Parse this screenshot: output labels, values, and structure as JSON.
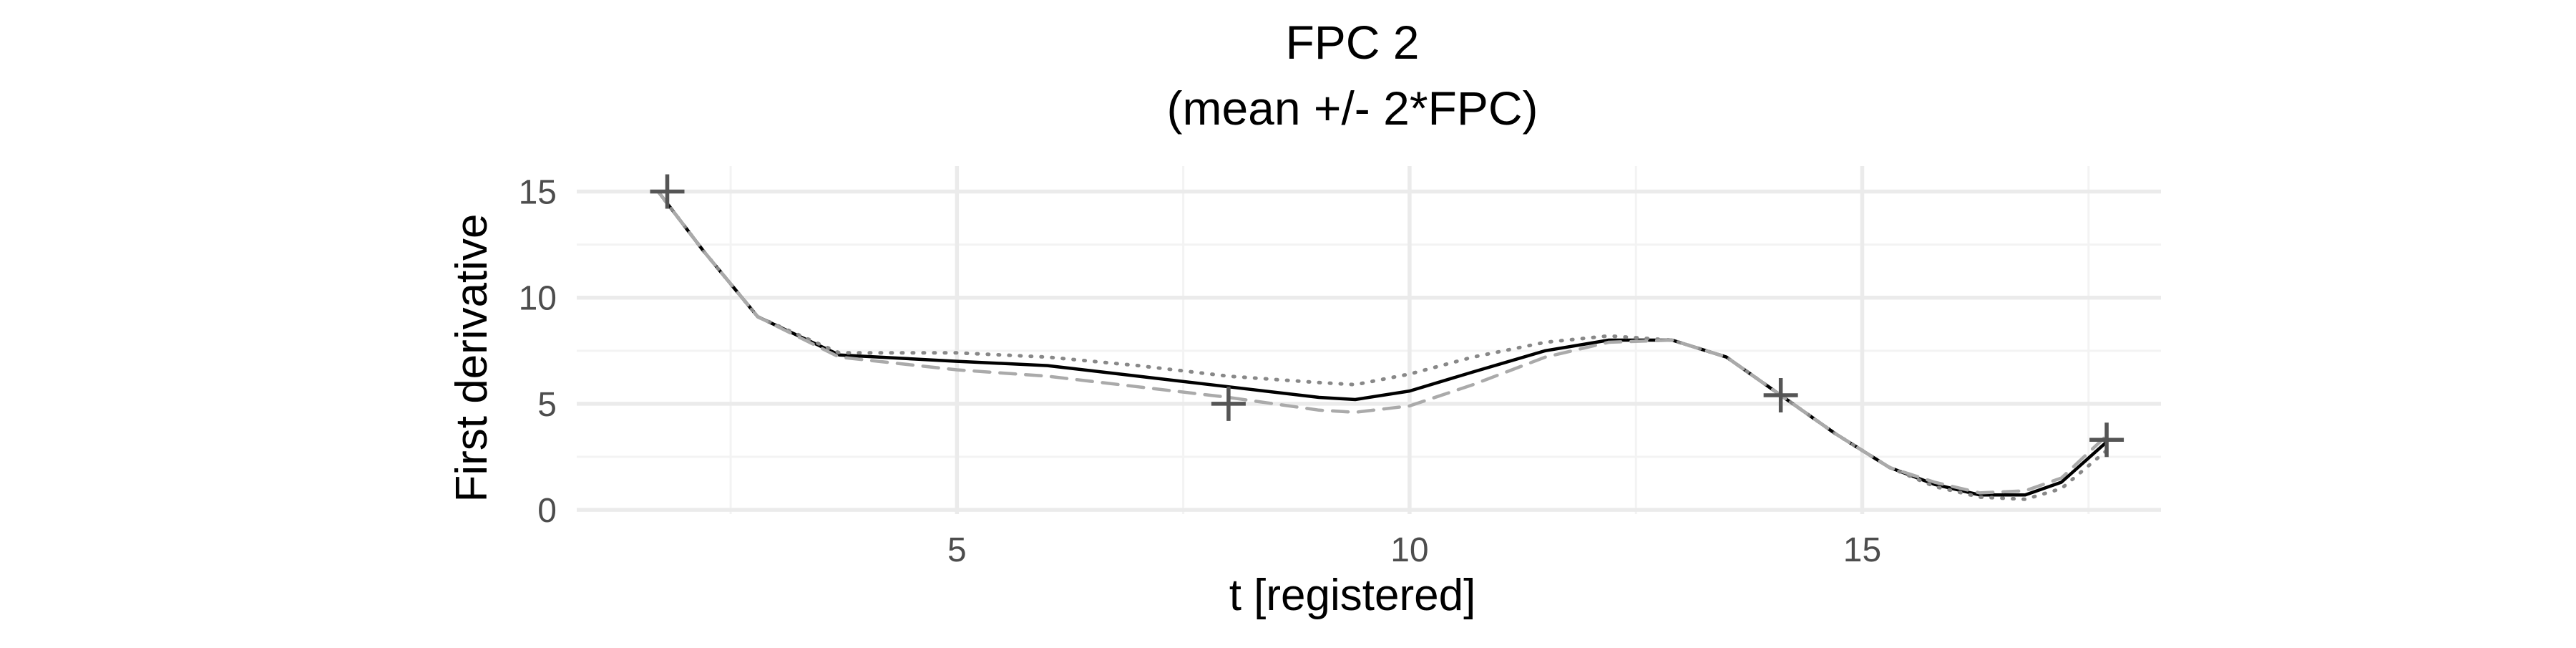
{
  "chart_data": {
    "type": "line",
    "title": "FPC 2",
    "subtitle": "(mean +/- 2*FPC)",
    "xlabel": "t [registered]",
    "ylabel": "First derivative",
    "xlim": [
      0.8,
      18.3
    ],
    "ylim": [
      -0.2,
      16.2
    ],
    "x_ticks": [
      5,
      10,
      15
    ],
    "y_ticks": [
      0,
      5,
      10,
      15
    ],
    "grid": true,
    "legend": "none",
    "series": [
      {
        "style": "solid",
        "color": "#000000",
        "x": [
          1.7,
          2.2,
          2.8,
          3.7,
          5.0,
          6.0,
          7.0,
          8.0,
          9.0,
          9.4,
          10.0,
          10.7,
          11.5,
          12.2,
          12.9,
          13.5,
          14.1,
          14.7,
          15.3,
          15.8,
          16.3,
          16.8,
          17.2,
          17.7
        ],
        "y": [
          15.0,
          12.2,
          9.1,
          7.3,
          7.0,
          6.8,
          6.3,
          5.8,
          5.3,
          5.2,
          5.6,
          6.5,
          7.5,
          8.0,
          8.0,
          7.2,
          5.4,
          3.6,
          2.0,
          1.2,
          0.7,
          0.7,
          1.3,
          3.2
        ]
      },
      {
        "style": "dotted",
        "color": "#888888",
        "x": [
          1.7,
          2.2,
          2.8,
          3.7,
          5.0,
          6.0,
          7.0,
          8.0,
          9.0,
          9.4,
          10.0,
          10.7,
          11.5,
          12.2,
          12.9,
          13.5,
          14.1,
          14.7,
          15.3,
          15.8,
          16.3,
          16.8,
          17.2,
          17.7
        ],
        "y": [
          15.0,
          12.2,
          9.1,
          7.4,
          7.4,
          7.2,
          6.8,
          6.3,
          6.0,
          5.9,
          6.4,
          7.2,
          7.9,
          8.2,
          8.0,
          7.2,
          5.4,
          3.6,
          2.0,
          1.1,
          0.6,
          0.5,
          1.0,
          2.8
        ]
      },
      {
        "style": "dashed",
        "color": "#aaaaaa",
        "x": [
          1.7,
          2.2,
          2.8,
          3.7,
          5.0,
          6.0,
          7.0,
          8.0,
          9.0,
          9.4,
          10.0,
          10.7,
          11.5,
          12.2,
          12.9,
          13.5,
          14.1,
          14.7,
          15.3,
          15.8,
          16.3,
          16.8,
          17.2,
          17.7
        ],
        "y": [
          15.0,
          12.2,
          9.1,
          7.2,
          6.6,
          6.3,
          5.8,
          5.3,
          4.7,
          4.6,
          4.9,
          5.9,
          7.2,
          7.9,
          8.0,
          7.2,
          5.4,
          3.6,
          2.0,
          1.3,
          0.8,
          0.9,
          1.5,
          3.5
        ]
      }
    ],
    "markers": {
      "symbol": "+",
      "color": "#555555",
      "points": [
        {
          "x": 1.8,
          "y": 15.0
        },
        {
          "x": 8.0,
          "y": 5.0
        },
        {
          "x": 14.1,
          "y": 5.4
        },
        {
          "x": 17.7,
          "y": 3.3
        }
      ]
    }
  }
}
